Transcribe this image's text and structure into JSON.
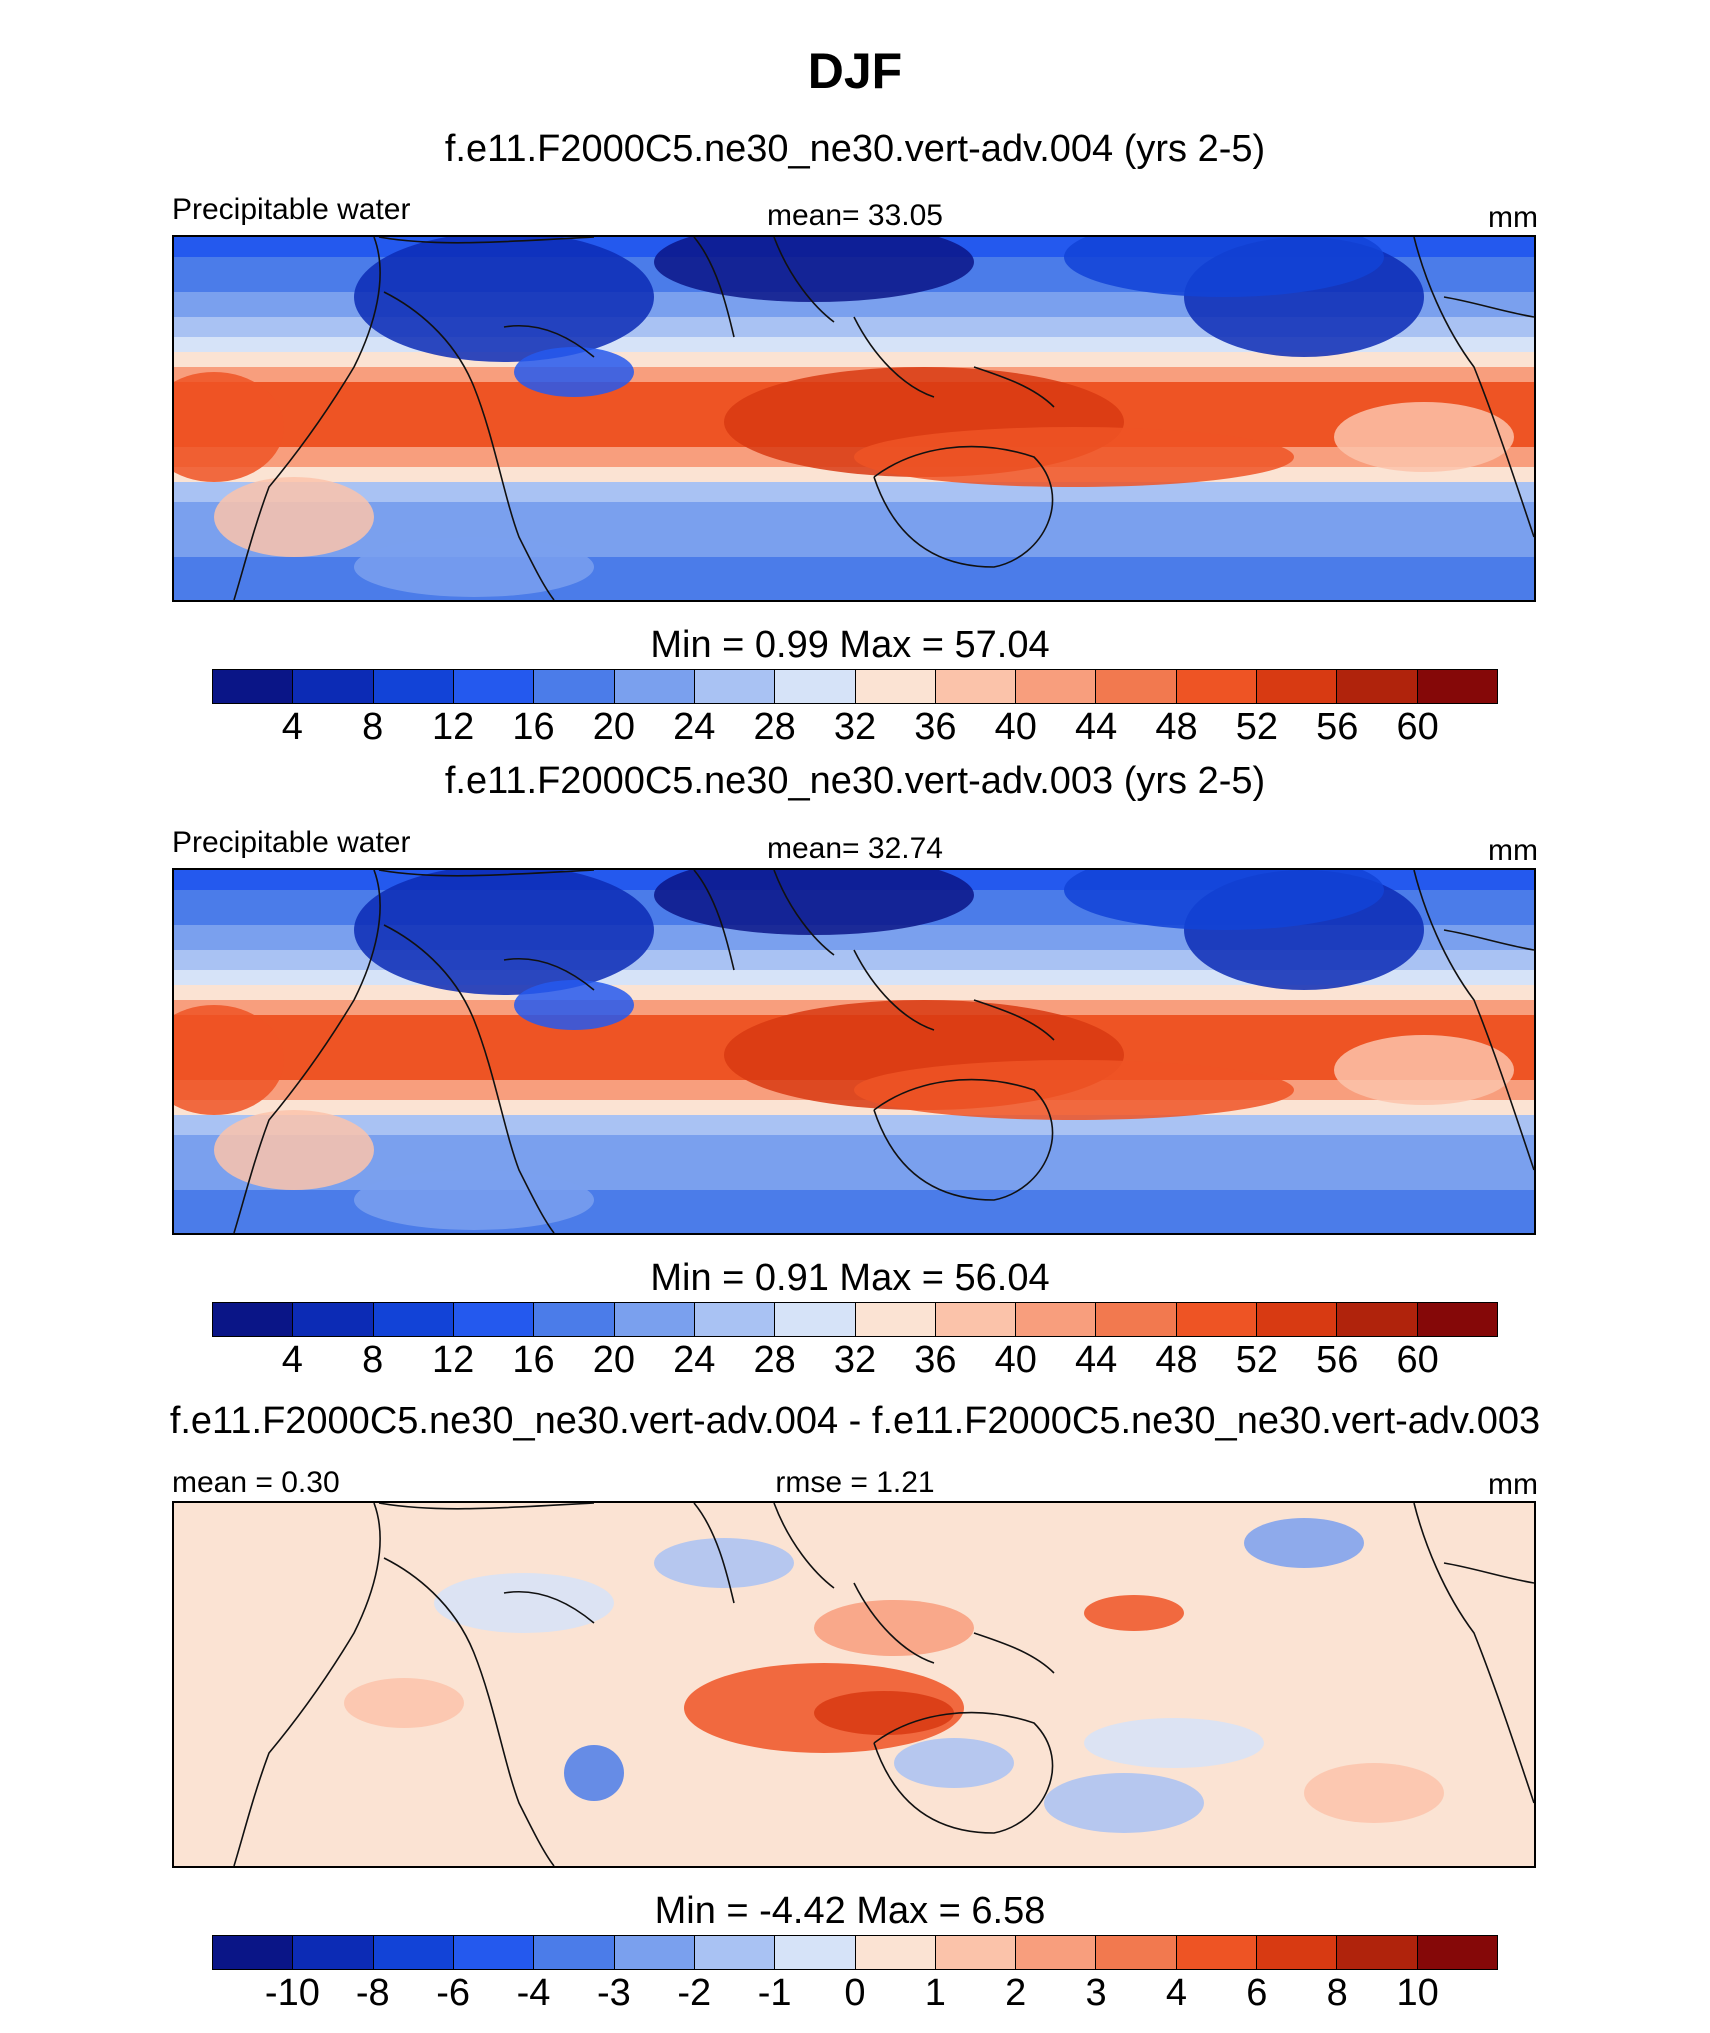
{
  "figure": {
    "title": "DJF"
  },
  "palette": {
    "abs": [
      "#0a1587",
      "#0c2bb5",
      "#1243d7",
      "#2459ee",
      "#4b7ce9",
      "#7aa0ee",
      "#a9c2f3",
      "#d6e3f8",
      "#fbe3d3",
      "#fbc3aa",
      "#f89e7d",
      "#f2794f",
      "#ee5424",
      "#d83a12",
      "#b0230c",
      "#850808"
    ],
    "diff": [
      "#0a1587",
      "#0c2bb5",
      "#1243d7",
      "#2459ee",
      "#4b7ce9",
      "#7aa0ee",
      "#a9c2f3",
      "#d6e3f8",
      "#fbe3d3",
      "#fbc3aa",
      "#f89e7d",
      "#f2794f",
      "#ee5424",
      "#d83a12",
      "#b0230c",
      "#850808"
    ]
  },
  "panels": [
    {
      "title": "f.e11.F2000C5.ne30_ne30.vert-adv.004 (yrs 2-5)",
      "left_label": "Precipitable water",
      "center_label": "mean=  33.05",
      "right_label": "mm",
      "minmax": "Min =   0.99 Max =  57.04"
    },
    {
      "title": "f.e11.F2000C5.ne30_ne30.vert-adv.003 (yrs 2-5)",
      "left_label": "Precipitable water",
      "center_label": "mean=  32.74",
      "right_label": "mm",
      "minmax": "Min =   0.91 Max =  56.04"
    },
    {
      "title": "f.e11.F2000C5.ne30_ne30.vert-adv.004 - f.e11.F2000C5.ne30_ne30.vert-adv.003",
      "left_label": "mean =   0.30",
      "center_label": "rmse =   1.21",
      "right_label": "mm",
      "minmax": "Min =  -4.42 Max =    6.58"
    }
  ],
  "chart_data": [
    {
      "type": "heatmap",
      "title": "f.e11.F2000C5.ne30_ne30.vert-adv.004 (yrs 2-5)",
      "variable": "Precipitable water",
      "units": "mm",
      "mean": 33.05,
      "min": 0.99,
      "max": 57.04,
      "levels": [
        4,
        8,
        12,
        16,
        20,
        24,
        28,
        32,
        36,
        40,
        44,
        48,
        52,
        56,
        60
      ],
      "tick_labels": [
        "4",
        "8",
        "12",
        "16",
        "20",
        "24",
        "28",
        "32",
        "36",
        "40",
        "44",
        "48",
        "52",
        "56",
        "60"
      ]
    },
    {
      "type": "heatmap",
      "title": "f.e11.F2000C5.ne30_ne30.vert-adv.003 (yrs 2-5)",
      "variable": "Precipitable water",
      "units": "mm",
      "mean": 32.74,
      "min": 0.91,
      "max": 56.04,
      "levels": [
        4,
        8,
        12,
        16,
        20,
        24,
        28,
        32,
        36,
        40,
        44,
        48,
        52,
        56,
        60
      ],
      "tick_labels": [
        "4",
        "8",
        "12",
        "16",
        "20",
        "24",
        "28",
        "32",
        "36",
        "40",
        "44",
        "48",
        "52",
        "56",
        "60"
      ]
    },
    {
      "type": "heatmap",
      "title": "f.e11.F2000C5.ne30_ne30.vert-adv.004 - f.e11.F2000C5.ne30_ne30.vert-adv.003",
      "units": "mm",
      "mean": 0.3,
      "rmse": 1.21,
      "min": -4.42,
      "max": 6.58,
      "levels": [
        -10,
        -8,
        -6,
        -4,
        -3,
        -2,
        -1,
        0,
        1,
        2,
        3,
        4,
        6,
        8,
        10
      ],
      "tick_labels": [
        "-10",
        "-8",
        "-6",
        "-4",
        "-3",
        "-2",
        "-1",
        "0",
        "1",
        "2",
        "3",
        "4",
        "6",
        "8",
        "10"
      ]
    }
  ]
}
